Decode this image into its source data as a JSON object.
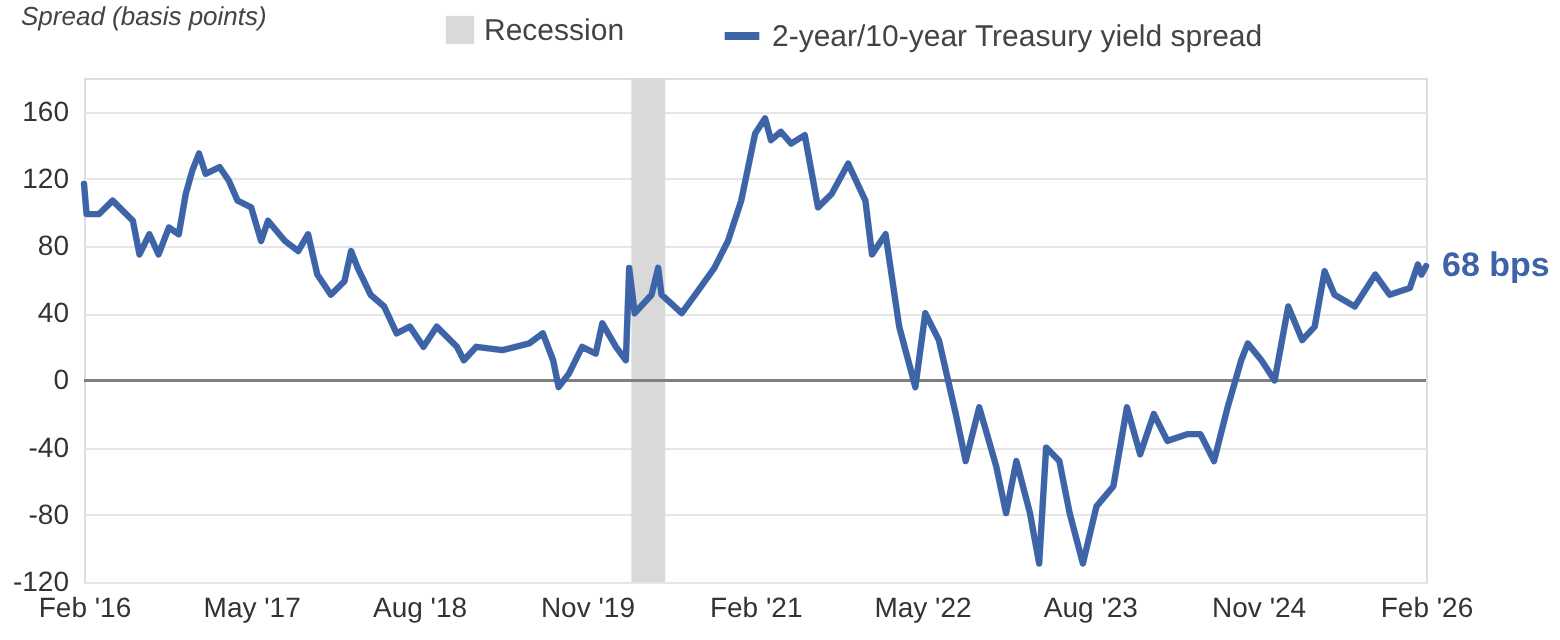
{
  "chart_data": {
    "type": "line",
    "ylabel": "Spread (basis points)",
    "x": [
      "2016-02-01",
      "2016-02-08",
      "2016-03-13",
      "2016-04-19",
      "2016-06-13",
      "2016-07-01",
      "2016-07-28",
      "2016-08-22",
      "2016-09-19",
      "2016-10-16",
      "2016-11-04",
      "2016-11-22",
      "2016-12-10",
      "2016-12-28",
      "2017-02-04",
      "2017-03-01",
      "2017-03-25",
      "2017-05-01",
      "2017-05-28",
      "2017-06-16",
      "2017-08-01",
      "2017-09-06",
      "2017-10-03",
      "2017-10-28",
      "2017-12-04",
      "2018-01-10",
      "2018-01-28",
      "2018-02-15",
      "2018-03-22",
      "2018-04-28",
      "2018-06-01",
      "2018-07-07",
      "2018-08-13",
      "2018-09-18",
      "2018-11-12",
      "2018-12-01",
      "2019-01-04",
      "2019-03-16",
      "2019-05-28",
      "2019-07-04",
      "2019-08-01",
      "2019-08-16",
      "2019-09-13",
      "2019-10-19",
      "2019-11-25",
      "2019-12-13",
      "2020-01-19",
      "2020-02-15",
      "2020-02-24",
      "2020-03-10",
      "2020-04-25",
      "2020-05-13",
      "2020-05-22",
      "2020-07-16",
      "2020-08-22",
      "2020-10-13",
      "2020-11-19",
      "2020-12-25",
      "2021-02-01",
      "2021-02-28",
      "2021-03-16",
      "2021-04-12",
      "2021-05-10",
      "2021-06-16",
      "2021-07-22",
      "2021-08-28",
      "2021-10-12",
      "2021-11-28",
      "2021-12-16",
      "2022-01-22",
      "2022-02-28",
      "2022-04-13",
      "2022-05-10",
      "2022-06-16",
      "2022-08-01",
      "2022-08-28",
      "2022-10-04",
      "2022-11-19",
      "2022-12-16",
      "2023-01-13",
      "2023-02-19",
      "2023-03-16",
      "2023-04-04",
      "2023-05-10",
      "2023-06-07",
      "2023-07-13",
      "2023-08-19",
      "2023-10-04",
      "2023-11-10",
      "2023-12-16",
      "2024-01-22",
      "2024-02-28",
      "2024-04-22",
      "2024-05-28",
      "2024-07-04",
      "2024-08-10",
      "2024-09-16",
      "2024-10-04",
      "2024-11-10",
      "2024-12-16",
      "2025-01-22",
      "2025-03-01",
      "2025-04-04",
      "2025-05-01",
      "2025-05-28",
      "2025-07-22",
      "2025-09-16",
      "2025-10-25",
      "2025-12-19",
      "2026-01-10",
      "2026-01-20",
      "2026-02-01"
    ],
    "series": [
      {
        "name": "2-year/10-year Treasury yield spread",
        "color": "#3e64a8",
        "values": [
          117,
          99,
          99,
          107,
          95,
          75,
          87,
          75,
          91,
          87,
          111,
          125,
          135,
          123,
          127,
          119,
          107,
          103,
          83,
          95,
          83,
          77,
          87,
          63,
          51,
          59,
          77,
          67,
          51,
          44,
          28,
          32,
          20,
          32,
          20,
          12,
          20,
          18,
          22,
          28,
          12,
          -4,
          4,
          20,
          16,
          34,
          20,
          12,
          67,
          40,
          51,
          67,
          51,
          40,
          51,
          67,
          83,
          107,
          147,
          156,
          143,
          148,
          141,
          146,
          103,
          111,
          129,
          107,
          75,
          87,
          32,
          -4,
          40,
          24,
          -20,
          -48,
          -16,
          -51,
          -79,
          -48,
          -79,
          -109,
          -40,
          -48,
          -79,
          -109,
          -75,
          -63,
          -16,
          -44,
          -20,
          -36,
          -32,
          -32,
          -48,
          -16,
          12,
          22,
          12,
          0,
          44,
          24,
          32,
          65,
          51,
          44,
          63,
          51,
          55,
          69,
          63,
          68
        ]
      }
    ],
    "xlim": [
      "2016-02-01",
      "2026-02-01"
    ],
    "xticks": [
      {
        "value": "2016-02-01",
        "label": "Feb '16"
      },
      {
        "value": "2017-05-01",
        "label": "May '17"
      },
      {
        "value": "2018-08-01",
        "label": "Aug '18"
      },
      {
        "value": "2019-11-01",
        "label": "Nov '19"
      },
      {
        "value": "2021-02-01",
        "label": "Feb '21"
      },
      {
        "value": "2022-05-01",
        "label": "May '22"
      },
      {
        "value": "2023-08-01",
        "label": "Aug '23"
      },
      {
        "value": "2024-11-01",
        "label": "Nov '24"
      },
      {
        "value": "2026-02-01",
        "label": "Feb '26"
      }
    ],
    "ylim": [
      -120,
      180
    ],
    "yticks": [
      -120,
      -80,
      -40,
      0,
      40,
      80,
      120,
      160
    ],
    "bands": [
      {
        "axis": "x",
        "from": "2020-03-01",
        "to": "2020-06-01",
        "label": "Recession",
        "color": "#d9d9d9"
      }
    ],
    "ref_lines": [
      {
        "axis": "y",
        "value": 0,
        "color": "#7f7f7f"
      }
    ],
    "annotations": [
      {
        "text": "68 bps",
        "x": "2026-02-01",
        "y": 68
      }
    ],
    "grid": "y",
    "legend": "top",
    "line_style": "solid",
    "marker": "none"
  }
}
